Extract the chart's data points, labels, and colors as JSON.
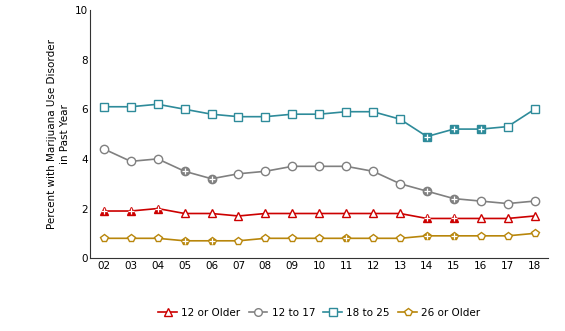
{
  "years": [
    2002,
    2003,
    2004,
    2005,
    2006,
    2007,
    2008,
    2009,
    2010,
    2011,
    2012,
    2013,
    2014,
    2015,
    2016,
    2017,
    2018
  ],
  "series": {
    "12_or_older": [
      1.9,
      1.9,
      2.0,
      1.8,
      1.8,
      1.7,
      1.8,
      1.8,
      1.8,
      1.8,
      1.8,
      1.8,
      1.6,
      1.6,
      1.6,
      1.6,
      1.7
    ],
    "12_to_17": [
      4.4,
      3.9,
      4.0,
      3.5,
      3.2,
      3.4,
      3.5,
      3.7,
      3.7,
      3.7,
      3.5,
      3.0,
      2.7,
      2.4,
      2.3,
      2.2,
      2.3
    ],
    "18_to_25": [
      6.1,
      6.1,
      6.2,
      6.0,
      5.8,
      5.7,
      5.7,
      5.8,
      5.8,
      5.9,
      5.9,
      5.6,
      4.9,
      5.2,
      5.2,
      5.3,
      6.0
    ],
    "26_or_older": [
      0.8,
      0.8,
      0.8,
      0.7,
      0.7,
      0.7,
      0.8,
      0.8,
      0.8,
      0.8,
      0.8,
      0.8,
      0.9,
      0.9,
      0.9,
      0.9,
      1.0
    ]
  },
  "sig_map": {
    "12_or_older": [
      2002,
      2003,
      2004,
      2014,
      2015
    ],
    "12_to_17": [
      2005,
      2006,
      2014,
      2015
    ],
    "18_to_25": [
      2014,
      2015,
      2016
    ],
    "26_or_older": [
      2005,
      2006,
      2011,
      2014,
      2015
    ]
  },
  "colors": {
    "12_or_older": "#cc0000",
    "12_to_17": "#808080",
    "18_to_25": "#2e8b9a",
    "26_or_older": "#b8860b"
  },
  "markers": {
    "12_or_older": "^",
    "12_to_17": "o",
    "18_to_25": "s",
    "26_or_older": "p"
  },
  "labels": {
    "12_or_older": "12 or Older",
    "12_to_17": "12 to 17",
    "18_to_25": "18 to 25",
    "26_or_older": "26 or Older"
  },
  "ylabel": "Percent with Marijuana Use Disorder\nin Past Year",
  "ylim": [
    0,
    10
  ],
  "yticks": [
    0,
    2,
    4,
    6,
    8,
    10
  ],
  "marker_size": 6,
  "linewidth": 1.2,
  "background_color": "#ffffff",
  "series_order": [
    "12_or_older",
    "12_to_17",
    "18_to_25",
    "26_or_older"
  ]
}
